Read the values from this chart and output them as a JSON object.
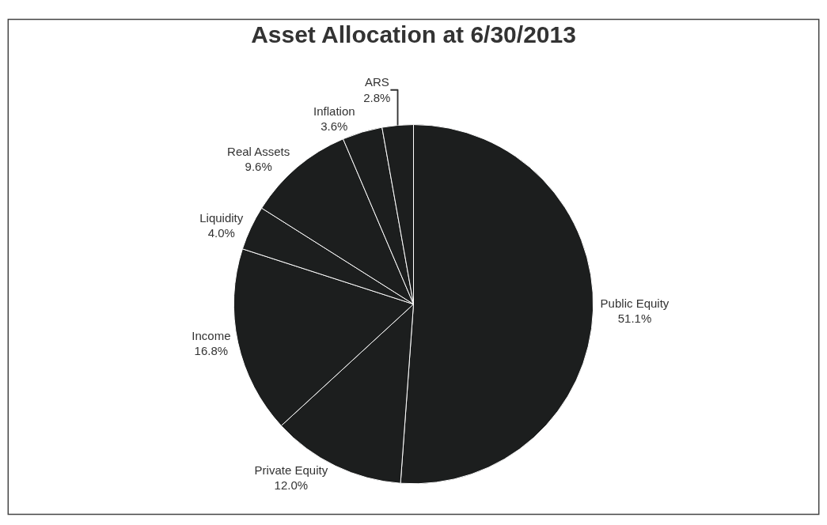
{
  "chart_data": {
    "type": "pie",
    "title": "Asset Allocation at 6/30/2013",
    "categories": [
      "Public Equity",
      "Private Equity",
      "Income",
      "Liquidity",
      "Real Assets",
      "Inflation",
      "ARS"
    ],
    "values": [
      51.1,
      12.0,
      16.8,
      4.0,
      9.6,
      3.6,
      2.8
    ],
    "value_labels": [
      "51.1%",
      "12.0%",
      "16.8%",
      "4.0%",
      "9.6%",
      "3.6%",
      "2.8%"
    ],
    "colors": [
      "#1c1e1e",
      "#1c1e1e",
      "#1c1e1e",
      "#1c1e1e",
      "#1c1e1e",
      "#1c1e1e",
      "#1c1e1e"
    ],
    "legend": false
  }
}
